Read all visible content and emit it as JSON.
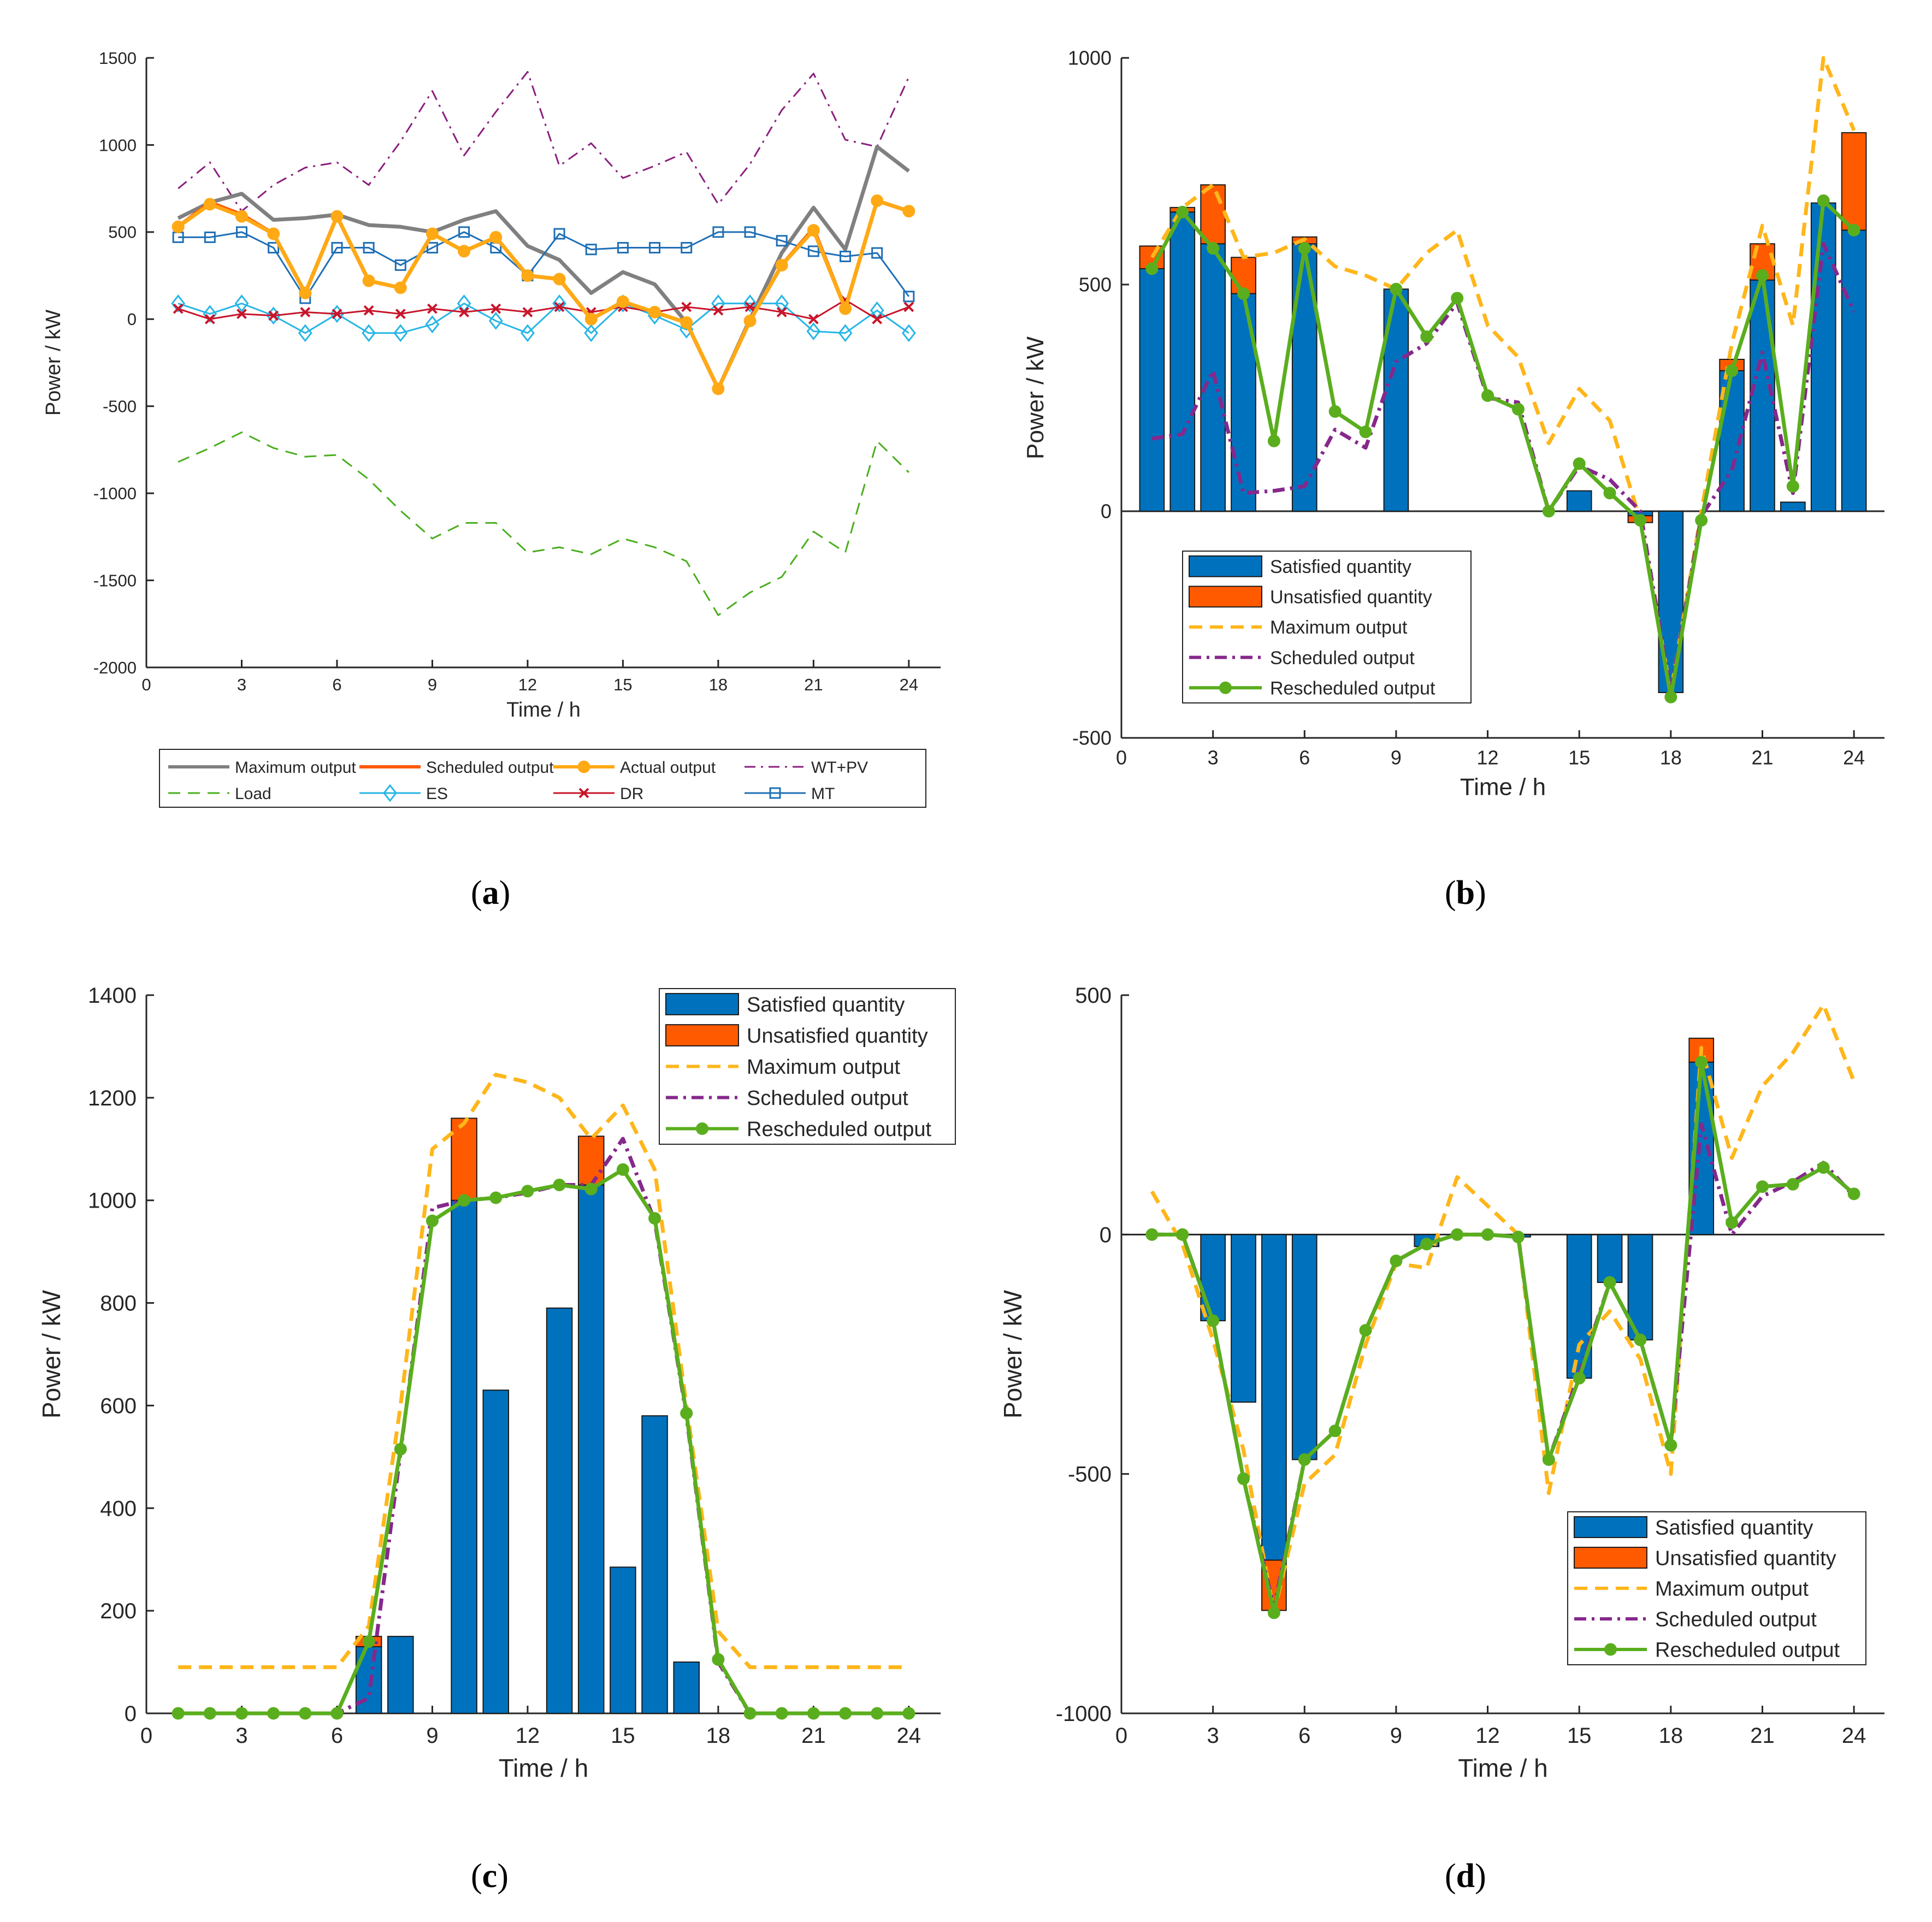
{
  "colors": {
    "max": "#808080",
    "sched": "#ff5a00",
    "actual": "#ffa915",
    "wtpv": "#8b1e7e",
    "load": "#4aae1e",
    "es": "#27b6e6",
    "dr": "#c8152a",
    "mt": "#1f6fb5",
    "sat": "#0072bd",
    "unsat": "#ff5a00",
    "maxo": "#ffb61a",
    "scho": "#86288c",
    "resch": "#5aae1e"
  },
  "chart_data": [
    {
      "id": "a",
      "type": "line",
      "caption_letter": "a",
      "xlabel": "Time / h",
      "ylabel": "Power / kW",
      "xlim": [
        0,
        25
      ],
      "ylim": [
        -2000,
        1500
      ],
      "xticks": [
        0,
        3,
        6,
        9,
        12,
        15,
        18,
        21,
        24
      ],
      "yticks": [
        -2000,
        -1500,
        -1000,
        -500,
        0,
        500,
        1000,
        1500
      ],
      "x": [
        1,
        2,
        3,
        4,
        5,
        6,
        7,
        8,
        9,
        10,
        11,
        12,
        13,
        14,
        15,
        16,
        17,
        18,
        19,
        20,
        21,
        22,
        23,
        24
      ],
      "series": [
        {
          "name": "WT+PV",
          "color_key": "wtpv",
          "style": "dashdot",
          "width": 3,
          "values": [
            750,
            900,
            620,
            770,
            870,
            900,
            770,
            1020,
            1310,
            940,
            1190,
            1420,
            880,
            1010,
            810,
            880,
            960,
            660,
            890,
            1200,
            1410,
            1030,
            990,
            1390
          ]
        },
        {
          "name": "Load",
          "color_key": "load",
          "style": "dashed",
          "width": 3,
          "values": [
            -820,
            -740,
            -650,
            -740,
            -790,
            -780,
            -920,
            -1100,
            -1260,
            -1170,
            -1170,
            -1340,
            -1310,
            -1350,
            -1260,
            -1310,
            -1390,
            -1700,
            -1570,
            -1480,
            -1220,
            -1340,
            -700,
            -880
          ]
        },
        {
          "name": "Maximum output",
          "color_key": "max",
          "style": "solid",
          "width": 7,
          "values": [
            580,
            670,
            720,
            570,
            580,
            600,
            540,
            530,
            500,
            570,
            620,
            420,
            340,
            150,
            270,
            200,
            -20,
            -400,
            0,
            380,
            640,
            400,
            990,
            850
          ]
        },
        {
          "name": "MT",
          "color_key": "mt",
          "style": "solid",
          "width": 3,
          "marker": "square",
          "values": [
            470,
            470,
            500,
            410,
            120,
            410,
            410,
            310,
            410,
            500,
            410,
            250,
            490,
            400,
            410,
            410,
            410,
            500,
            500,
            450,
            390,
            360,
            380,
            130
          ]
        },
        {
          "name": "ES",
          "color_key": "es",
          "style": "solid",
          "width": 3,
          "marker": "diamond",
          "values": [
            90,
            30,
            90,
            20,
            -80,
            30,
            -80,
            -80,
            -30,
            90,
            -10,
            -80,
            90,
            -80,
            90,
            20,
            -60,
            90,
            90,
            90,
            -70,
            -80,
            50,
            -80
          ]
        },
        {
          "name": "DR",
          "color_key": "dr",
          "style": "solid",
          "width": 3,
          "marker": "x",
          "values": [
            60,
            0,
            30,
            20,
            40,
            30,
            50,
            30,
            60,
            40,
            60,
            40,
            70,
            40,
            70,
            40,
            70,
            50,
            70,
            40,
            0,
            110,
            0,
            70
          ]
        },
        {
          "name": "Scheduled output",
          "color_key": "sched",
          "style": "solid",
          "width": 7,
          "values": [
            530,
            670,
            600,
            490,
            150,
            590,
            220,
            180,
            490,
            390,
            470,
            250,
            230,
            0,
            100,
            40,
            -20,
            -400,
            -10,
            310,
            520,
            60,
            680,
            620
          ]
        },
        {
          "name": "Actual output",
          "color_key": "actual",
          "style": "solid",
          "width": 7,
          "marker": "dot",
          "values": [
            530,
            660,
            590,
            490,
            150,
            590,
            220,
            180,
            490,
            390,
            470,
            250,
            230,
            0,
            100,
            40,
            -20,
            -400,
            -10,
            310,
            510,
            60,
            680,
            620
          ]
        }
      ],
      "legend": {
        "position": "bottom",
        "entries": [
          {
            "label": "Maximum output",
            "series": "Maximum output"
          },
          {
            "label": "Scheduled output",
            "series": "Scheduled output"
          },
          {
            "label": "Actual output",
            "series": "Actual output"
          },
          {
            "label": "WT+PV",
            "series": "WT+PV"
          },
          {
            "label": "Load",
            "series": "Load"
          },
          {
            "label": "ES",
            "series": "ES"
          },
          {
            "label": "DR",
            "series": "DR"
          },
          {
            "label": "MT",
            "series": "MT"
          }
        ]
      }
    },
    {
      "id": "b",
      "type": "bar",
      "caption_letter": "b",
      "xlabel": "Time / h",
      "ylabel": "Power / kW",
      "xlim": [
        0,
        25
      ],
      "ylim": [
        -500,
        1000
      ],
      "xticks": [
        0,
        3,
        6,
        9,
        12,
        15,
        18,
        21,
        24
      ],
      "yticks": [
        -500,
        0,
        500,
        1000
      ],
      "x": [
        1,
        2,
        3,
        4,
        5,
        6,
        7,
        8,
        9,
        10,
        11,
        12,
        13,
        14,
        15,
        16,
        17,
        18,
        19,
        20,
        21,
        22,
        23,
        24
      ],
      "satisfied": [
        535,
        660,
        590,
        480,
        0,
        590,
        0,
        0,
        490,
        0,
        0,
        0,
        0,
        0,
        45,
        0,
        -10,
        -400,
        0,
        310,
        510,
        20,
        680,
        620
      ],
      "unsatisfied": [
        50,
        10,
        130,
        80,
        0,
        15,
        0,
        0,
        0,
        0,
        0,
        0,
        0,
        0,
        0,
        0,
        -15,
        0,
        0,
        25,
        80,
        0,
        0,
        215
      ],
      "maximum_output": [
        560,
        670,
        720,
        560,
        570,
        600,
        540,
        520,
        490,
        570,
        620,
        410,
        340,
        150,
        270,
        200,
        -20,
        -400,
        0,
        370,
        630,
        410,
        1000,
        840
      ],
      "scheduled_output": [
        160,
        170,
        310,
        40,
        45,
        55,
        180,
        140,
        330,
        370,
        460,
        250,
        240,
        0,
        100,
        70,
        0,
        -400,
        -10,
        90,
        350,
        40,
        590,
        440
      ],
      "rescheduled_output": [
        535,
        660,
        580,
        480,
        155,
        580,
        220,
        175,
        490,
        385,
        470,
        255,
        225,
        0,
        105,
        40,
        -20,
        -410,
        -20,
        310,
        520,
        55,
        685,
        620
      ],
      "legend": {
        "position": "bottom-left",
        "entries": [
          "Satisfied quantity",
          "Unsatisfied quantity",
          "Maximum output",
          "Scheduled output",
          "Rescheduled output"
        ]
      }
    },
    {
      "id": "c",
      "type": "bar",
      "caption_letter": "c",
      "xlabel": "Time / h",
      "ylabel": "Power / kW",
      "xlim": [
        0,
        25
      ],
      "ylim": [
        0,
        1400
      ],
      "xticks": [
        0,
        3,
        6,
        9,
        12,
        15,
        18,
        21,
        24
      ],
      "yticks": [
        0,
        200,
        400,
        600,
        800,
        1000,
        1200,
        1400
      ],
      "x": [
        1,
        2,
        3,
        4,
        5,
        6,
        7,
        8,
        9,
        10,
        11,
        12,
        13,
        14,
        15,
        16,
        17,
        18,
        19,
        20,
        21,
        22,
        23,
        24
      ],
      "satisfied": [
        0,
        0,
        0,
        0,
        0,
        0,
        130,
        150,
        0,
        1000,
        630,
        0,
        790,
        1030,
        285,
        580,
        100,
        0,
        0,
        0,
        0,
        0,
        0,
        0
      ],
      "unsatisfied": [
        0,
        0,
        0,
        0,
        0,
        0,
        20,
        0,
        0,
        160,
        0,
        0,
        0,
        95,
        0,
        0,
        0,
        0,
        0,
        0,
        0,
        0,
        0,
        0
      ],
      "maximum_output": [
        90,
        90,
        90,
        90,
        90,
        90,
        170,
        600,
        1100,
        1150,
        1245,
        1230,
        1200,
        1120,
        1185,
        1060,
        600,
        160,
        90,
        90,
        90,
        90,
        90,
        90
      ],
      "scheduled_output": [
        0,
        0,
        0,
        0,
        0,
        0,
        30,
        510,
        985,
        1000,
        1005,
        1015,
        1030,
        1030,
        1120,
        960,
        580,
        100,
        0,
        0,
        0,
        0,
        0,
        0
      ],
      "rescheduled_output": [
        0,
        0,
        0,
        0,
        0,
        0,
        140,
        515,
        960,
        1000,
        1005,
        1018,
        1030,
        1022,
        1060,
        965,
        585,
        105,
        0,
        0,
        0,
        0,
        0,
        0
      ],
      "legend": {
        "position": "top-right",
        "entries": [
          "Satisfied quantity",
          "Unsatisfied quantity",
          "Maximum output",
          "Scheduled output",
          "Rescheduled output"
        ]
      }
    },
    {
      "id": "d",
      "type": "bar",
      "caption_letter": "d",
      "xlabel": "Time / h",
      "ylabel": "Power / kW",
      "xlim": [
        0,
        25
      ],
      "ylim": [
        -1000,
        500
      ],
      "xticks": [
        0,
        3,
        6,
        9,
        12,
        15,
        18,
        21,
        24
      ],
      "yticks": [
        -1000,
        -500,
        0,
        500
      ],
      "x": [
        1,
        2,
        3,
        4,
        5,
        6,
        7,
        8,
        9,
        10,
        11,
        12,
        13,
        14,
        15,
        16,
        17,
        18,
        19,
        20,
        21,
        22,
        23,
        24
      ],
      "satisfied": [
        0,
        0,
        -180,
        -350,
        -680,
        -470,
        0,
        0,
        0,
        -25,
        0,
        0,
        -5,
        0,
        -300,
        -100,
        -220,
        0,
        360,
        0,
        0,
        0,
        0,
        0
      ],
      "unsatisfied": [
        0,
        0,
        0,
        0,
        -105,
        0,
        0,
        0,
        0,
        0,
        0,
        0,
        0,
        0,
        0,
        0,
        0,
        0,
        50,
        0,
        0,
        0,
        0,
        0
      ],
      "maximum_output": [
        90,
        -20,
        -220,
        -450,
        -790,
        -520,
        -460,
        -230,
        -60,
        -70,
        120,
        60,
        0,
        -540,
        -230,
        -160,
        -260,
        -500,
        390,
        160,
        310,
        380,
        480,
        320
      ],
      "scheduled_output": [
        0,
        0,
        -180,
        -510,
        -780,
        -470,
        -410,
        -200,
        -55,
        -20,
        0,
        0,
        -5,
        -470,
        -290,
        -100,
        -220,
        -440,
        230,
        0,
        80,
        110,
        150,
        80
      ],
      "rescheduled_output": [
        0,
        0,
        -180,
        -510,
        -790,
        -470,
        -410,
        -200,
        -55,
        -20,
        0,
        0,
        -5,
        -470,
        -300,
        -100,
        -220,
        -440,
        360,
        25,
        100,
        105,
        140,
        85
      ],
      "legend": {
        "position": "bottom-right",
        "entries": [
          "Satisfied quantity",
          "Unsatisfied quantity",
          "Maximum output",
          "Scheduled output",
          "Rescheduled output"
        ]
      }
    }
  ]
}
